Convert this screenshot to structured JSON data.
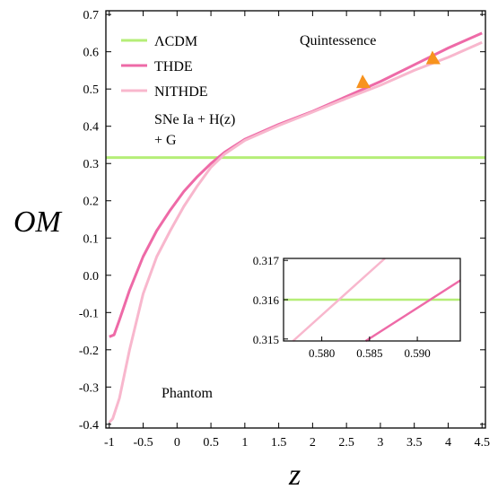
{
  "chart_data": {
    "type": "line",
    "xlabel": "z",
    "ylabel": "OM",
    "xlim": [
      -1.05,
      4.55
    ],
    "ylim": [
      -0.41,
      0.71
    ],
    "x_ticks": [
      -1,
      -0.5,
      0,
      0.5,
      1,
      1.5,
      2,
      2.5,
      3,
      3.5,
      4,
      4.5
    ],
    "x_tick_labels": [
      "-1",
      "-0.5",
      "0",
      "0.5",
      "1",
      "1.5",
      "2",
      "2.5",
      "3",
      "3.5",
      "4",
      "4.5"
    ],
    "y_ticks": [
      -0.4,
      -0.3,
      -0.2,
      -0.1,
      0.0,
      0.1,
      0.2,
      0.3,
      0.4,
      0.5,
      0.6,
      0.7
    ],
    "y_tick_labels": [
      "-0.4",
      "-0.3",
      "-0.2",
      "-0.1",
      "0.0",
      "0.1",
      "0.2",
      "0.3",
      "0.4",
      "0.5",
      "0.6",
      "0.7"
    ],
    "legend_position": "top-left",
    "series": [
      {
        "name": "ΛCDM",
        "color": "#b5ee77",
        "points": [
          [
            -1.05,
            0.316
          ],
          [
            4.55,
            0.316
          ]
        ]
      },
      {
        "name": "THDE",
        "color": "#ee6aa7",
        "points": [
          [
            -1.0,
            -0.165
          ],
          [
            -0.93,
            -0.16
          ],
          [
            -0.85,
            -0.12
          ],
          [
            -0.7,
            -0.04
          ],
          [
            -0.5,
            0.05
          ],
          [
            -0.3,
            0.12
          ],
          [
            -0.1,
            0.175
          ],
          [
            0.1,
            0.225
          ],
          [
            0.3,
            0.265
          ],
          [
            0.5,
            0.3
          ],
          [
            0.7,
            0.33
          ],
          [
            1.0,
            0.365
          ],
          [
            1.5,
            0.405
          ],
          [
            2.0,
            0.44
          ],
          [
            2.5,
            0.48
          ],
          [
            3.0,
            0.52
          ],
          [
            3.5,
            0.565
          ],
          [
            4.0,
            0.61
          ],
          [
            4.5,
            0.65
          ]
        ]
      },
      {
        "name": "NITHDE",
        "color": "#f8b7cd",
        "points": [
          [
            -1.0,
            -0.395
          ],
          [
            -0.95,
            -0.385
          ],
          [
            -0.85,
            -0.33
          ],
          [
            -0.7,
            -0.2
          ],
          [
            -0.5,
            -0.05
          ],
          [
            -0.3,
            0.05
          ],
          [
            -0.1,
            0.12
          ],
          [
            0.1,
            0.185
          ],
          [
            0.3,
            0.24
          ],
          [
            0.5,
            0.29
          ],
          [
            0.7,
            0.325
          ],
          [
            1.0,
            0.362
          ],
          [
            1.5,
            0.402
          ],
          [
            2.0,
            0.438
          ],
          [
            2.5,
            0.475
          ],
          [
            3.0,
            0.51
          ],
          [
            3.5,
            0.55
          ],
          [
            4.0,
            0.585
          ],
          [
            4.5,
            0.625
          ]
        ]
      }
    ],
    "annotations": {
      "quintessence": "Quintessence",
      "phantom": "Phantom",
      "dataset_line1": "SNe Ia + H(z)",
      "dataset_line2": "+ G"
    },
    "markers": {
      "color": "#f7931e",
      "points": [
        [
          2.75,
          0.517
        ],
        [
          3.78,
          0.581
        ]
      ]
    },
    "inset": {
      "xlim": [
        0.576,
        0.5945
      ],
      "ylim": [
        0.31495,
        0.31705
      ],
      "x_ticks": [
        0.58,
        0.585,
        0.59
      ],
      "x_tick_labels": [
        "0.580",
        "0.585",
        "0.590"
      ],
      "y_ticks": [
        0.315,
        0.316,
        0.317
      ],
      "y_tick_labels": [
        "0.315",
        "0.316",
        "0.317"
      ],
      "lines": [
        {
          "series": "ΛCDM",
          "points": [
            [
              0.576,
              0.316
            ],
            [
              0.5945,
              0.316
            ]
          ]
        },
        {
          "series": "NITHDE",
          "points": [
            [
              0.577,
              0.31495
            ],
            [
              0.5866,
              0.31705
            ]
          ]
        },
        {
          "series": "THDE",
          "points": [
            [
              0.5846,
              0.31495
            ],
            [
              0.5945,
              0.31649
            ]
          ]
        }
      ]
    }
  }
}
